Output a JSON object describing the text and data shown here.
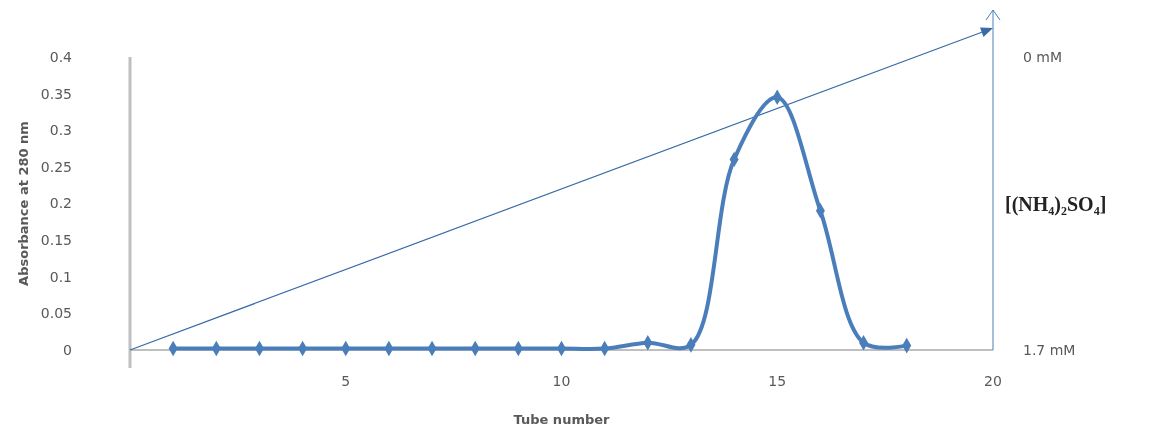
{
  "chart_data": {
    "type": "line",
    "xlabel": "Tube number",
    "ylabel": "Absorbance at 280 nm",
    "y2label": "[(NH₄)₂SO₄]",
    "xlim": [
      0,
      20
    ],
    "xticks": [
      5,
      10,
      15,
      20
    ],
    "ylim": [
      0,
      0.4
    ],
    "yticks": [
      0,
      0.05,
      0.1,
      0.15,
      0.2,
      0.25,
      0.3,
      0.35,
      0.4
    ],
    "y2lim": [
      1.7,
      0
    ],
    "y2ticks": [
      {
        "value": 0,
        "label": "0 mM"
      },
      {
        "value": 1.7,
        "label": "1.7 mM"
      }
    ],
    "marker": "diamond",
    "grid": false,
    "series": [
      {
        "color": "#4a7ebb",
        "x": [
          1,
          2,
          3,
          4,
          5,
          6,
          7,
          8,
          9,
          10,
          11,
          12,
          13,
          14,
          15,
          16,
          17,
          18
        ],
        "values": [
          0.002,
          0.002,
          0.002,
          0.002,
          0.002,
          0.002,
          0.002,
          0.002,
          0.002,
          0.002,
          0.002,
          0.01,
          0.007,
          0.26,
          0.345,
          0.19,
          0.01,
          0.006
        ]
      }
    ]
  }
}
